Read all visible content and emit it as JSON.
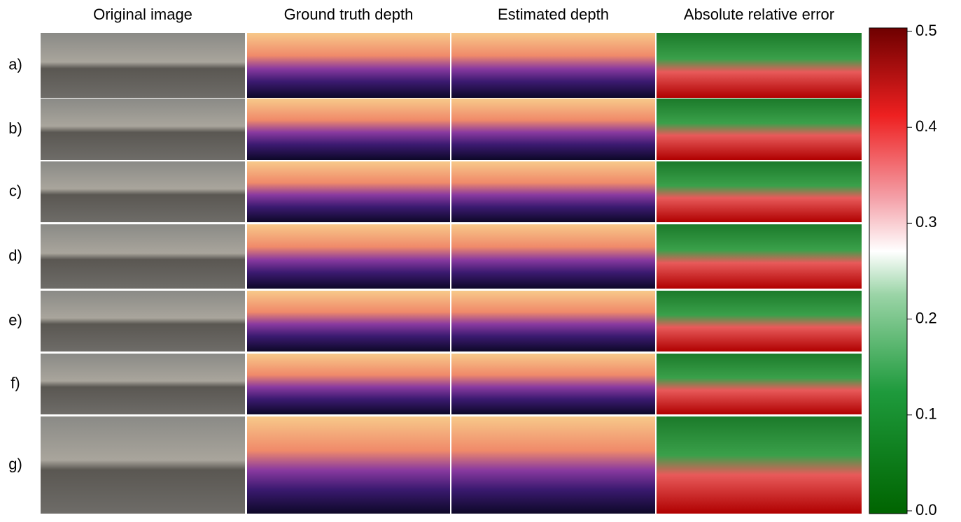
{
  "columns": [
    "Original image",
    "Ground truth depth",
    "Estimated depth",
    "Absolute relative error"
  ],
  "rows": [
    "a)",
    "b)",
    "c)",
    "d)",
    "e)",
    "f)",
    "g)"
  ],
  "colorbar": {
    "lim": [
      0,
      0.5
    ],
    "ticks": [
      {
        "value": 0,
        "label": "0.0"
      },
      0.1,
      0.2,
      0.3,
      0.4,
      0.5
    ]
  }
}
